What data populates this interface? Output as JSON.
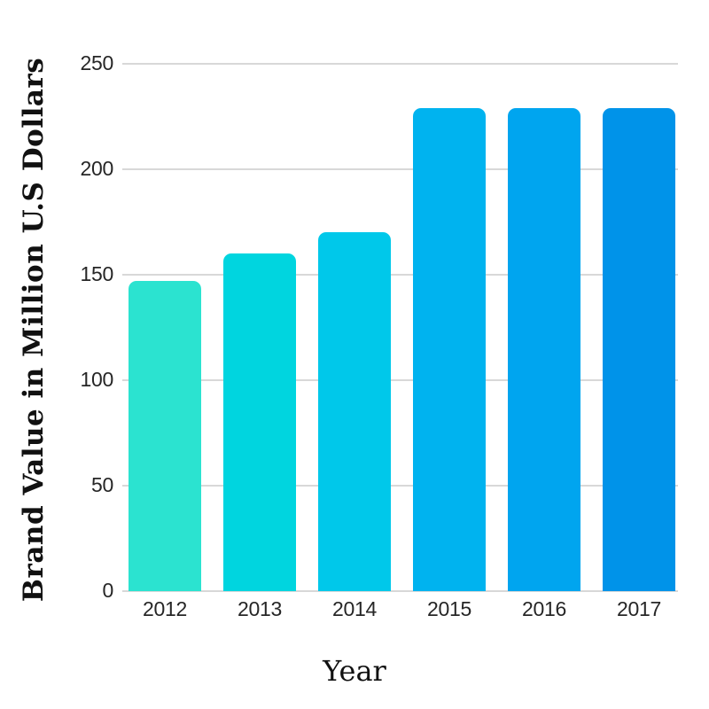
{
  "chart_data": {
    "type": "bar",
    "title": "",
    "xlabel": "Year",
    "ylabel": "Brand Value in Million U.S Dollars",
    "categories": [
      "2012",
      "2013",
      "2014",
      "2015",
      "2016",
      "2017"
    ],
    "values": [
      147,
      160,
      170,
      229,
      229,
      229
    ],
    "bar_colors": [
      "#2be3d0",
      "#00d5df",
      "#00c8ea",
      "#00b3ef",
      "#00a5ef",
      "#0093e9"
    ],
    "ylim": [
      0,
      250
    ],
    "y_ticks": [
      0,
      50,
      100,
      150,
      200,
      250
    ],
    "grid": "horizontal",
    "legend": "none",
    "colors": {
      "background": "#ffffff",
      "gridline": "#d8d8d8",
      "tick_text": "#262626",
      "axis_title_text": "#111111"
    }
  }
}
